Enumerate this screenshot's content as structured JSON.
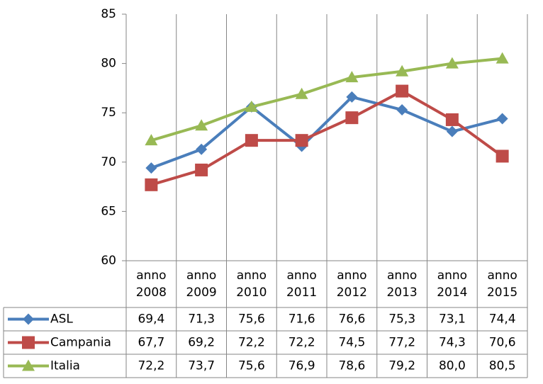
{
  "chart_data": {
    "type": "line",
    "categories": [
      "anno 2008",
      "anno 2009",
      "anno 2010",
      "anno 2011",
      "anno 2012",
      "anno 2013",
      "anno 2014",
      "anno 2015"
    ],
    "series": [
      {
        "name": "ASL",
        "color": "#4a7ebb",
        "marker": "diamond",
        "values": [
          69.4,
          71.3,
          75.6,
          71.6,
          76.6,
          75.3,
          73.1,
          74.4
        ],
        "value_labels": [
          "69,4",
          "71,3",
          "75,6",
          "71,6",
          "76,6",
          "75,3",
          "73,1",
          "74,4"
        ]
      },
      {
        "name": "Campania",
        "color": "#be4b48",
        "marker": "square",
        "values": [
          67.7,
          69.2,
          72.2,
          72.2,
          74.5,
          77.2,
          74.3,
          70.6
        ],
        "value_labels": [
          "67,7",
          "69,2",
          "72,2",
          "72,2",
          "74,5",
          "77,2",
          "74,3",
          "70,6"
        ]
      },
      {
        "name": "Italia",
        "color": "#98b954",
        "marker": "triangle",
        "values": [
          72.2,
          73.7,
          75.6,
          76.9,
          78.6,
          79.2,
          80.0,
          80.5
        ],
        "value_labels": [
          "72,2",
          "73,7",
          "75,6",
          "76,9",
          "78,6",
          "79,2",
          "80,0",
          "80,5"
        ]
      }
    ],
    "ylim": [
      60,
      85
    ],
    "yticks": [
      60,
      65,
      70,
      75,
      80,
      85
    ],
    "grid": false,
    "data_table": true
  }
}
